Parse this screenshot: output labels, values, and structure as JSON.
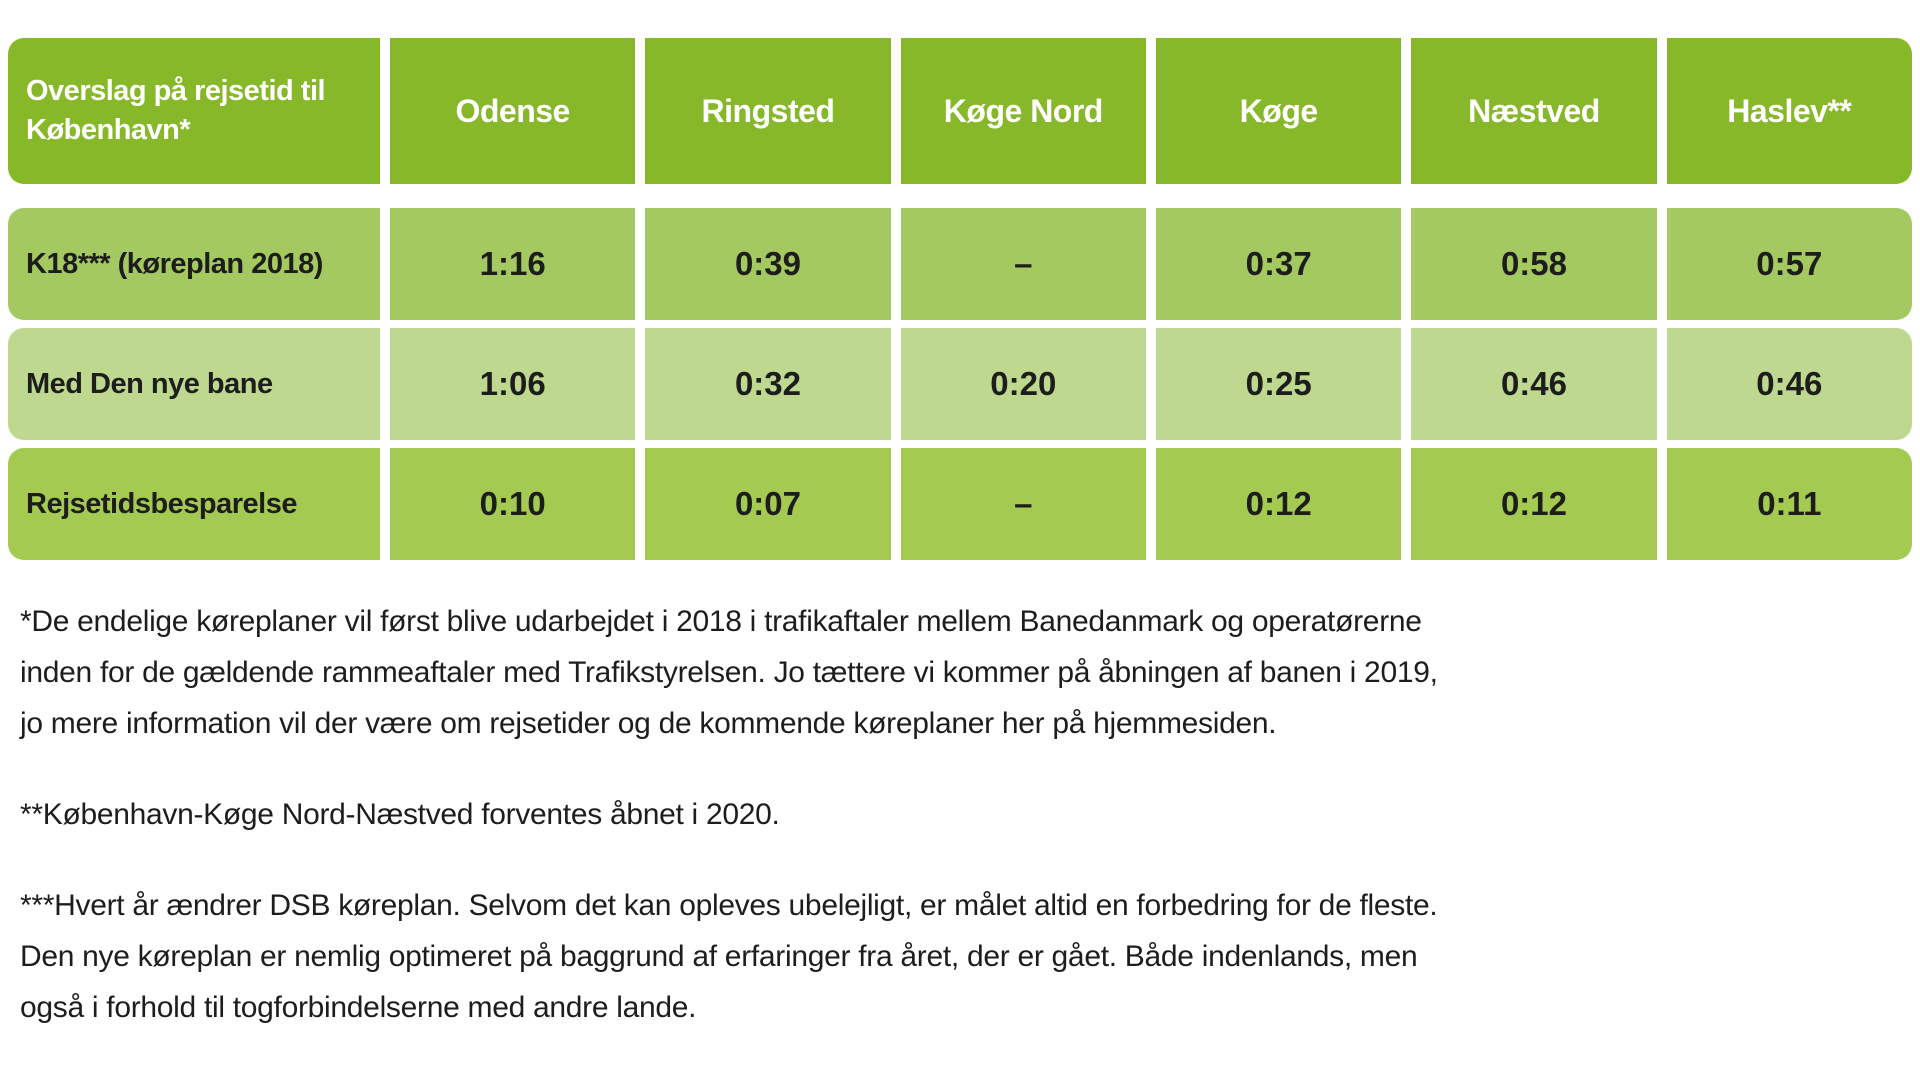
{
  "table": {
    "header": {
      "title": "Overslag på rejsetid til København*",
      "title_lines": [
        "Overslag på rejsetid til",
        "København*"
      ],
      "columns": [
        "Odense",
        "Ringsted",
        "Køge Nord",
        "Køge",
        "Næstved",
        "Haslev**"
      ]
    },
    "rows": [
      {
        "label": "K18*** (køreplan 2018)",
        "values": [
          "1:16",
          "0:39",
          "–",
          "0:37",
          "0:58",
          "0:57"
        ]
      },
      {
        "label": "Med Den nye bane",
        "values": [
          "1:06",
          "0:32",
          "0:20",
          "0:25",
          "0:46",
          "0:46"
        ]
      },
      {
        "label": "Rejsetidsbesparelse",
        "values": [
          "0:10",
          "0:07",
          "–",
          "0:12",
          "0:12",
          "0:11"
        ]
      }
    ],
    "colors": {
      "header_background": "#87b829",
      "row1_background": "#a5c961",
      "row2_background": "#bed890",
      "row3_background": "#a4ca52",
      "header_text": "#ffffff",
      "body_text": "#1d1d1b",
      "page_background": "#ffffff"
    }
  },
  "footnotes": [
    {
      "lines": [
        "*De endelige køreplaner vil først blive udarbejdet i 2018 i trafikaftaler mellem Banedanmark og operatørerne",
        "inden for de gældende rammeaftaler med Trafikstyrelsen. Jo tættere vi kommer på åbningen af banen i 2019,",
        "jo mere information vil der være om rejsetider og de kommende køreplaner her på hjemmesiden."
      ]
    },
    {
      "lines": [
        "**København-Køge Nord-Næstved forventes åbnet i 2020."
      ]
    },
    {
      "lines": [
        "***Hvert år ændrer DSB køreplan. Selvom det kan opleves ubelejligt, er målet altid en forbedring for de fleste.",
        "Den nye køreplan er nemlig optimeret på baggrund af erfaringer fra året, der er gået. Både indenlands, men",
        "også i forhold til togforbindelserne med andre lande."
      ]
    }
  ],
  "chart_data": {
    "type": "table",
    "title": "Overslag på rejsetid til København*",
    "columns": [
      "Odense",
      "Ringsted",
      "Køge Nord",
      "Køge",
      "Næstved",
      "Haslev**"
    ],
    "rows": [
      {
        "label": "K18*** (køreplan 2018)",
        "values": [
          "1:16",
          "0:39",
          "–",
          "0:37",
          "0:58",
          "0:57"
        ]
      },
      {
        "label": "Med Den nye bane",
        "values": [
          "1:06",
          "0:32",
          "0:20",
          "0:25",
          "0:46",
          "0:46"
        ]
      },
      {
        "label": "Rejsetidsbesparelse",
        "values": [
          "0:10",
          "0:07",
          "–",
          "0:12",
          "0:12",
          "0:11"
        ]
      }
    ],
    "notes": [
      "*De endelige køreplaner vil først blive udarbejdet i 2018 i trafikaftaler mellem Banedanmark og operatørerne inden for de gældende rammeaftaler med Trafikstyrelsen. Jo tættere vi kommer på åbningen af banen i 2019, jo mere information vil der være om rejsetider og de kommende køreplaner her på hjemmesiden.",
      "**København-Køge Nord-Næstved forventes åbnet i 2020.",
      "***Hvert år ændrer DSB køreplan. Selvom det kan opleves ubelejligt, er målet altid en forbedring for de fleste. Den nye køreplan er nemlig optimeret på baggrund af erfaringer fra året, der er gået. Både indenlands, men også i forhold til togforbindelserne med andre lande."
    ]
  }
}
